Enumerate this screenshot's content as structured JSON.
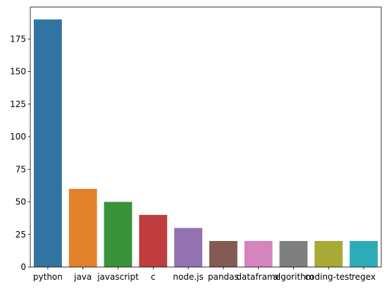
{
  "chart_data": {
    "type": "bar",
    "categories": [
      "python",
      "java",
      "javascript",
      "c",
      "node.js",
      "pandas",
      "dataframe",
      "algorithm",
      "coding-test",
      "regex"
    ],
    "values": [
      190,
      60,
      50,
      40,
      30,
      20,
      20,
      20,
      20,
      20
    ],
    "colors": [
      "#3274a1",
      "#e1812c",
      "#3a923a",
      "#c03d3e",
      "#9372b2",
      "#845b53",
      "#d684bd",
      "#7f7f7f",
      "#a9aa35",
      "#2eabb8"
    ],
    "ylim": [
      0,
      199.5
    ],
    "yticks": [
      0,
      25,
      50,
      75,
      100,
      125,
      150,
      175
    ],
    "title": "",
    "xlabel": "",
    "ylabel": "",
    "grid": false,
    "legend": "none"
  }
}
